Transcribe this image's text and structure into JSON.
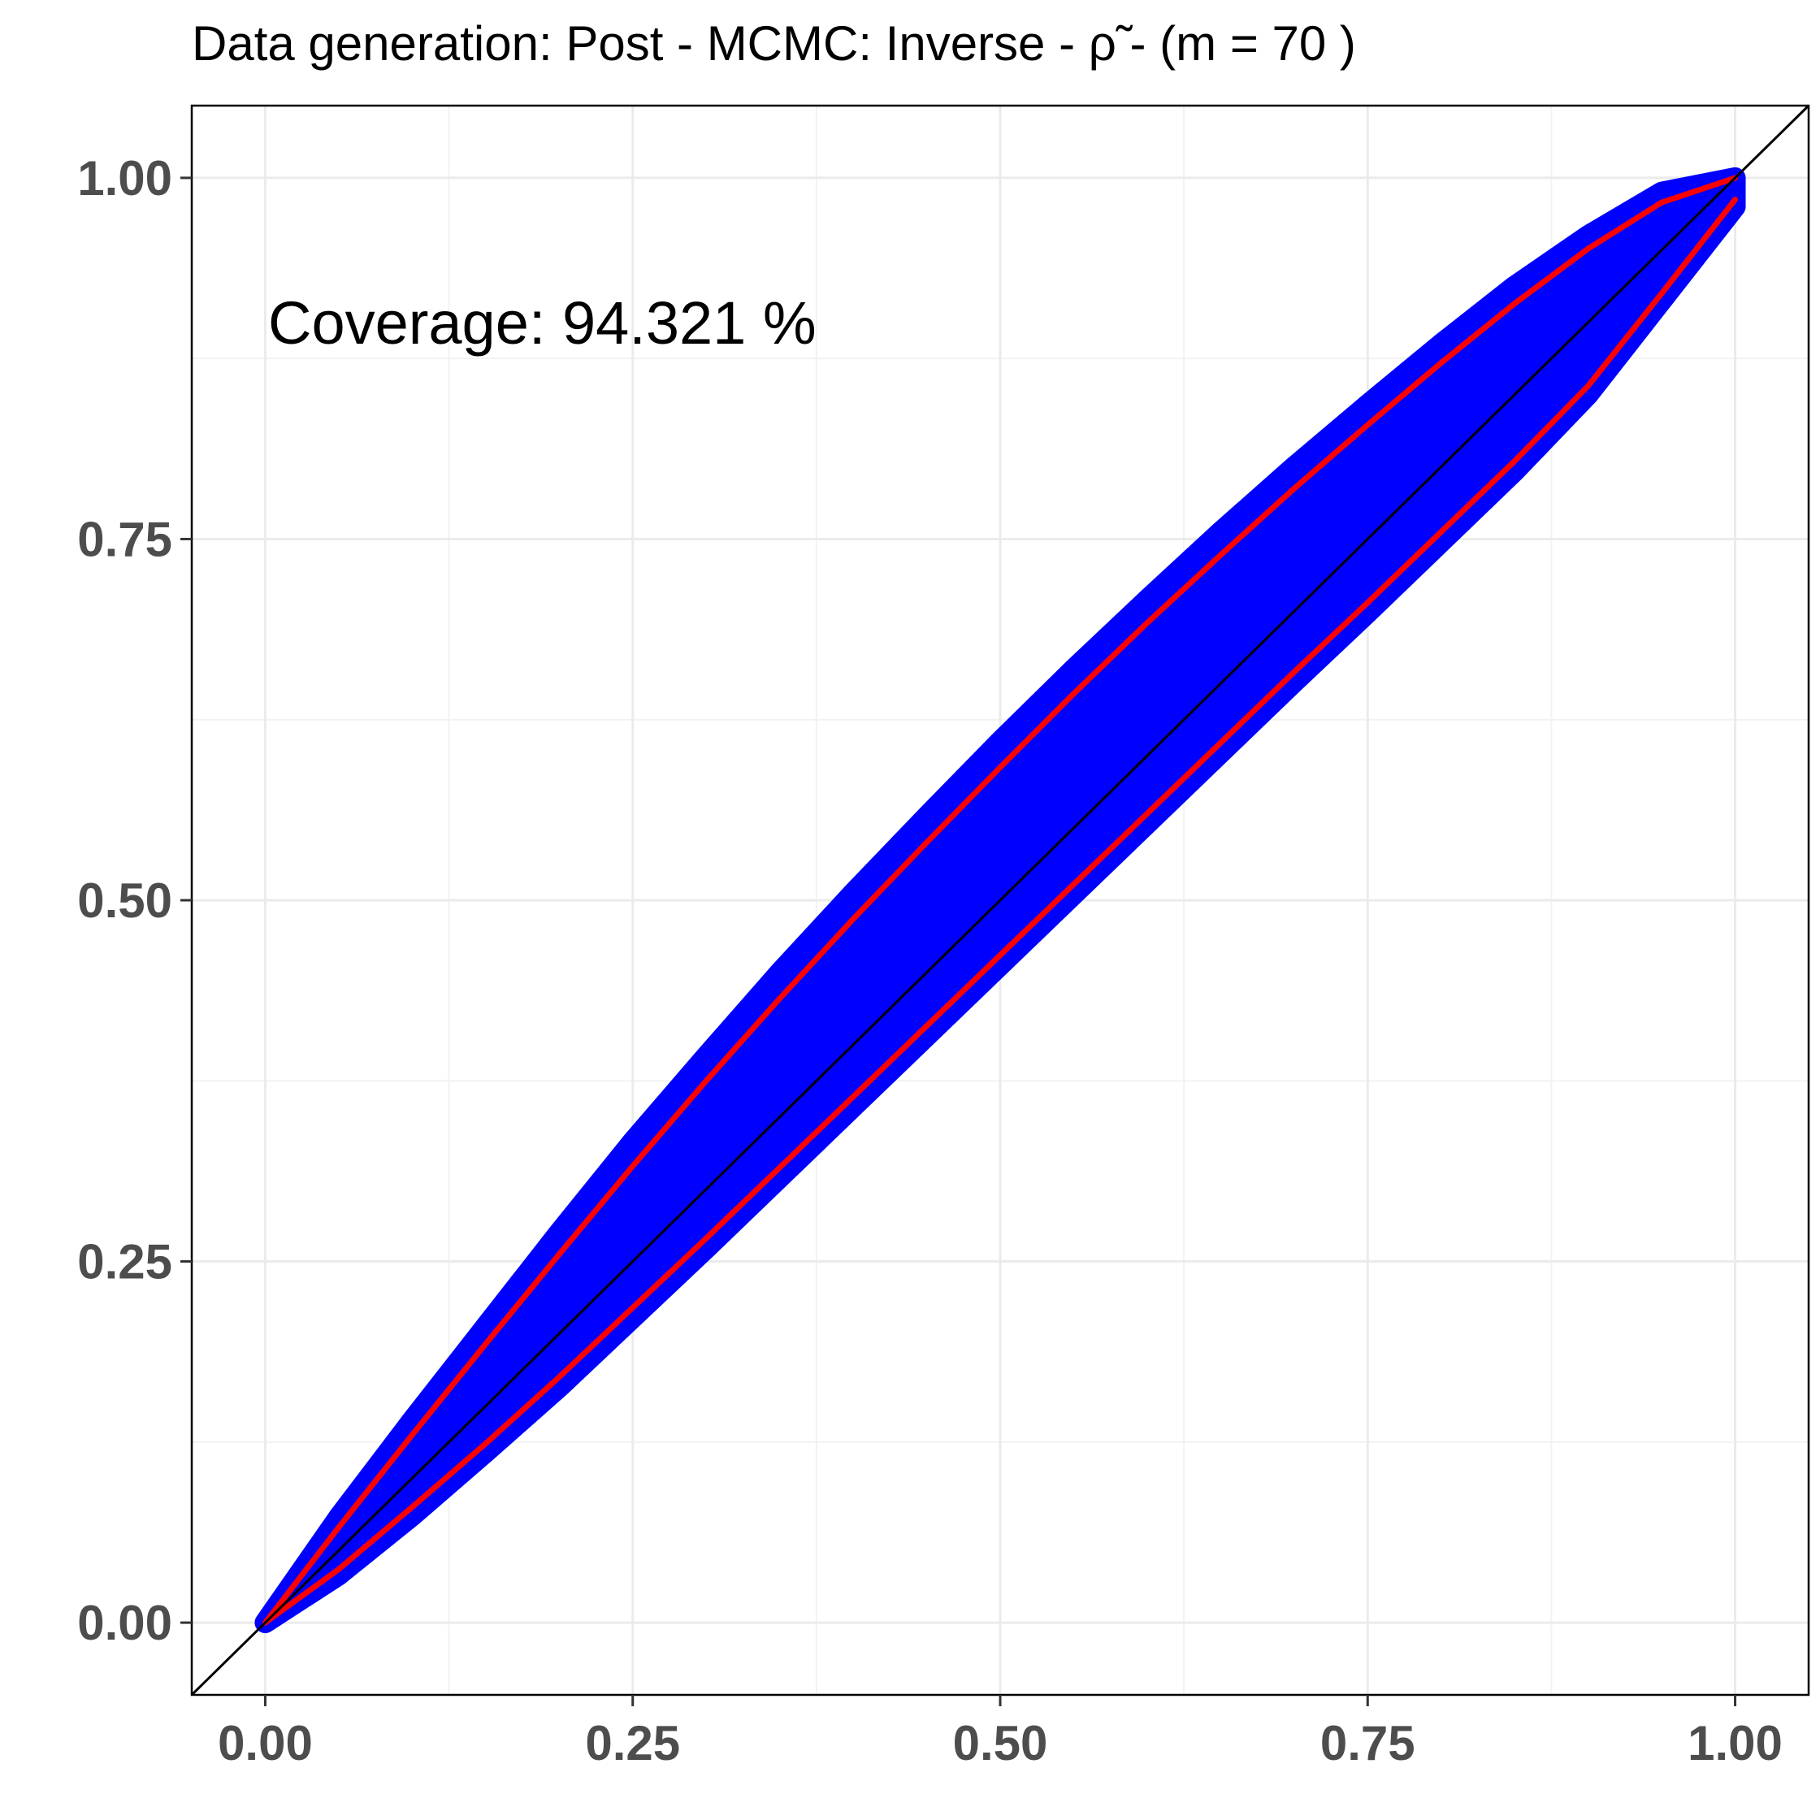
{
  "chart_data": {
    "type": "scatter",
    "title": "Data generation:  Post  -  MCMC:  Inverse  -  ρ̃  -   (m =  70 )",
    "xlabel": "",
    "ylabel": "",
    "xlim": [
      -0.05,
      1.05
    ],
    "ylim": [
      -0.05,
      1.05
    ],
    "x_ticks": [
      "0.00",
      "0.25",
      "0.50",
      "0.75",
      "1.00"
    ],
    "y_ticks": [
      "0.00",
      "0.25",
      "0.50",
      "0.75",
      "1.00"
    ],
    "grid": true,
    "annotation": "Coverage:  94.321 %",
    "reference_line": {
      "from": [
        -0.05,
        -0.05
      ],
      "to": [
        1.05,
        1.05
      ],
      "color": "#000000"
    },
    "band": {
      "x": [
        0.0,
        0.05,
        0.1,
        0.15,
        0.2,
        0.25,
        0.3,
        0.35,
        0.4,
        0.45,
        0.5,
        0.55,
        0.6,
        0.65,
        0.7,
        0.75,
        0.8,
        0.85,
        0.9,
        0.95,
        1.0
      ],
      "upper": [
        0.0,
        0.073,
        0.14,
        0.205,
        0.27,
        0.333,
        0.392,
        0.45,
        0.505,
        0.558,
        0.61,
        0.66,
        0.708,
        0.755,
        0.8,
        0.843,
        0.885,
        0.925,
        0.96,
        0.99,
        1.0
      ],
      "lower": [
        0.0,
        0.033,
        0.074,
        0.118,
        0.163,
        0.211,
        0.259,
        0.308,
        0.357,
        0.406,
        0.455,
        0.504,
        0.553,
        0.602,
        0.651,
        0.699,
        0.748,
        0.797,
        0.85,
        0.915,
        0.98
      ],
      "color": "#0000ff"
    },
    "series": [
      {
        "color": "#ff0000",
        "x": [
          0.0,
          0.05,
          0.1,
          0.15,
          0.2,
          0.25,
          0.3,
          0.35,
          0.4,
          0.45,
          0.5,
          0.55,
          0.6,
          0.65,
          0.7,
          0.75,
          0.8,
          0.85,
          0.9,
          0.95,
          1.0
        ],
        "y": [
          0.0,
          0.066,
          0.13,
          0.193,
          0.255,
          0.316,
          0.375,
          0.432,
          0.487,
          0.54,
          0.592,
          0.643,
          0.692,
          0.739,
          0.785,
          0.829,
          0.872,
          0.913,
          0.951,
          0.983,
          1.0
        ]
      },
      {
        "color": "#ff0000",
        "x": [
          0.0,
          0.05,
          0.1,
          0.15,
          0.2,
          0.25,
          0.3,
          0.35,
          0.4,
          0.45,
          0.5,
          0.55,
          0.6,
          0.65,
          0.7,
          0.75,
          0.8,
          0.85,
          0.9,
          0.95,
          1.0
        ],
        "y": [
          0.0,
          0.037,
          0.08,
          0.124,
          0.17,
          0.218,
          0.266,
          0.315,
          0.364,
          0.413,
          0.462,
          0.511,
          0.56,
          0.609,
          0.658,
          0.706,
          0.755,
          0.804,
          0.856,
          0.92,
          0.985
        ]
      }
    ]
  }
}
